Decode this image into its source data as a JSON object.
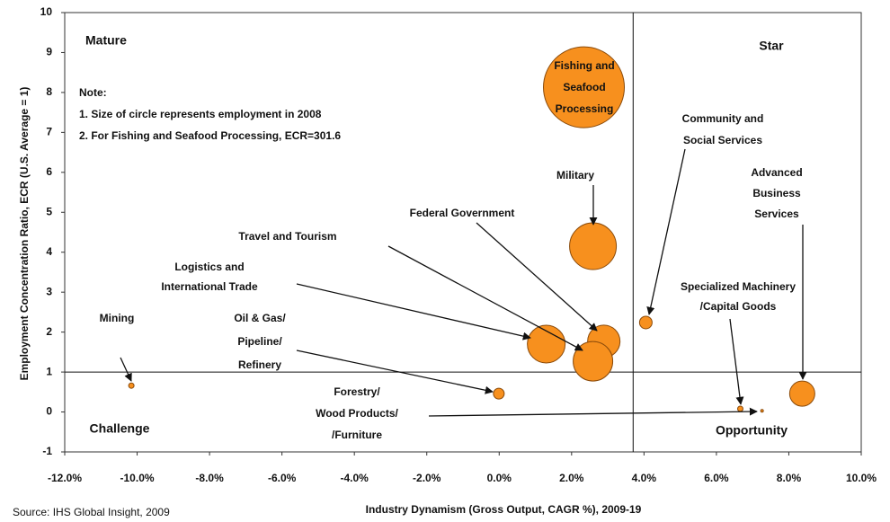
{
  "chart_data": {
    "type": "bubble",
    "x": [
      2.34,
      2.59,
      2.89,
      2.59,
      1.3,
      4.05,
      8.37,
      6.66,
      -10.16,
      -0.01,
      7.26
    ],
    "values": [
      8.13,
      4.15,
      1.77,
      1.27,
      1.7,
      2.24,
      0.46,
      0.08,
      0.66,
      0.46,
      0.03
    ],
    "sizes": [
      45,
      26,
      18,
      22,
      21,
      7,
      14,
      3,
      3,
      6,
      1.5
    ],
    "point_labels": [
      [
        "Fishing and",
        "Seafood",
        "Processing"
      ],
      [
        "Military"
      ],
      [
        "Federal Government"
      ],
      [
        "Travel and Tourism"
      ],
      [
        "Logistics and",
        "International Trade"
      ],
      [
        "Community and",
        "Social Services"
      ],
      [
        "Advanced",
        "Business",
        "Services"
      ],
      [
        "Specialized Machinery",
        "/Capital Goods"
      ],
      [
        "Mining"
      ],
      [
        "Oil & Gas/",
        "Pipeline/",
        "Refinery"
      ],
      [
        "Forestry/",
        "Wood Products/",
        "/Furniture"
      ]
    ],
    "color": "#f7901e",
    "xlim": [
      -12,
      10
    ],
    "ylim": [
      -1,
      10
    ],
    "xticks": [
      {
        "value": -12,
        "label": "-12.0%"
      },
      {
        "value": -10,
        "label": "-10.0%"
      },
      {
        "value": -8,
        "label": "-8.0%"
      },
      {
        "value": -6,
        "label": "-6.0%"
      },
      {
        "value": -4,
        "label": "-4.0%"
      },
      {
        "value": -2,
        "label": "-2.0%"
      },
      {
        "value": 0,
        "label": "0.0%"
      },
      {
        "value": 2,
        "label": "2.0%"
      },
      {
        "value": 4,
        "label": "4.0%"
      },
      {
        "value": 6,
        "label": "6.0%"
      },
      {
        "value": 8,
        "label": "8.0%"
      },
      {
        "value": 10,
        "label": "10.0%"
      }
    ],
    "yticks": [
      -1,
      0,
      1,
      2,
      3,
      4,
      5,
      6,
      7,
      8,
      9,
      10
    ],
    "divider_x": 3.7,
    "divider_y": 1,
    "xlabel": "Industry Dynamism (Gross Output, CAGR %), 2009-19",
    "ylabel": "Employment Concentration Ratio, ECR (U.S. Average = 1)",
    "quadrants": [
      "Mature",
      "Star",
      "Challenge",
      "Opportunity"
    ],
    "note": [
      "Note:",
      "1. Size of circle represents employment in 2008",
      "2. For Fishing and Seafood Processing, ECR=301.6"
    ],
    "source": "Source: IHS Global Insight, 2009"
  }
}
